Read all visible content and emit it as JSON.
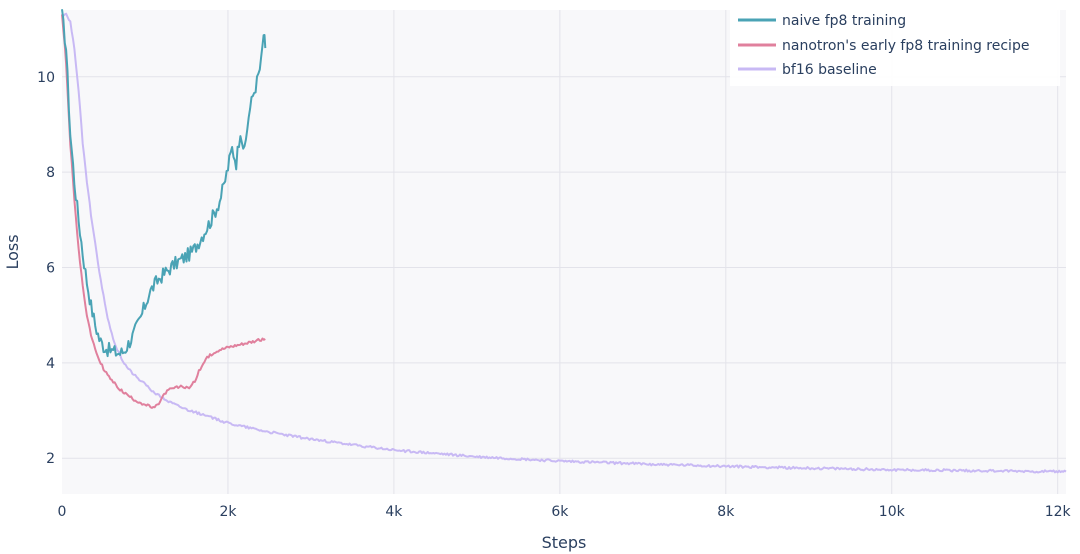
{
  "chart_data": {
    "type": "line",
    "xlabel": "Steps",
    "ylabel": "Loss",
    "xlim": [
      0,
      12100
    ],
    "ylim": [
      1.25,
      11.4
    ],
    "x_ticks": [
      {
        "value": 0,
        "label": "0"
      },
      {
        "value": 2000,
        "label": "2k"
      },
      {
        "value": 4000,
        "label": "4k"
      },
      {
        "value": 6000,
        "label": "6k"
      },
      {
        "value": 8000,
        "label": "8k"
      },
      {
        "value": 10000,
        "label": "10k"
      },
      {
        "value": 12000,
        "label": "12k"
      }
    ],
    "y_ticks": [
      {
        "value": 2,
        "label": "2"
      },
      {
        "value": 4,
        "label": "4"
      },
      {
        "value": 6,
        "label": "6"
      },
      {
        "value": 8,
        "label": "8"
      },
      {
        "value": 10,
        "label": "10"
      }
    ],
    "grid": true,
    "legend_position": "top-right",
    "series": [
      {
        "name": "naive fp8 training",
        "color": "#4aa3b5",
        "x": [
          0,
          50,
          100,
          150,
          200,
          250,
          300,
          350,
          400,
          450,
          500,
          550,
          600,
          650,
          700,
          750,
          800,
          850,
          900,
          950,
          1000,
          1050,
          1100,
          1150,
          1200,
          1250,
          1300,
          1350,
          1400,
          1450,
          1500,
          1550,
          1600,
          1650,
          1700,
          1750,
          1800,
          1850,
          1900,
          1950,
          2000,
          2050,
          2100,
          2150,
          2200,
          2250,
          2300,
          2350,
          2400,
          2430,
          2450
        ],
        "y": [
          11.3,
          10.6,
          8.8,
          7.8,
          7.0,
          6.3,
          5.7,
          5.2,
          4.8,
          4.5,
          4.35,
          4.28,
          4.25,
          4.22,
          4.2,
          4.25,
          4.4,
          4.55,
          4.75,
          4.95,
          5.2,
          5.45,
          5.6,
          5.72,
          5.82,
          5.9,
          5.98,
          6.06,
          6.12,
          6.18,
          6.24,
          6.3,
          6.4,
          6.55,
          6.7,
          6.85,
          7.0,
          7.2,
          7.4,
          7.7,
          8.1,
          8.5,
          8.2,
          8.9,
          8.4,
          9.2,
          9.6,
          9.9,
          10.3,
          10.9,
          10.6
        ],
        "noise": 0.15
      },
      {
        "name": "nanotron's early fp8 training recipe",
        "color": "#e0809d",
        "x": [
          0,
          50,
          100,
          150,
          200,
          250,
          300,
          350,
          400,
          450,
          500,
          550,
          600,
          650,
          700,
          750,
          800,
          850,
          900,
          950,
          1000,
          1050,
          1100,
          1150,
          1200,
          1250,
          1300,
          1350,
          1400,
          1450,
          1500,
          1550,
          1600,
          1650,
          1700,
          1750,
          1800,
          1850,
          1900,
          1950,
          2000,
          2050,
          2100,
          2150,
          2200,
          2250,
          2300,
          2350,
          2400,
          2450
        ],
        "y": [
          11.3,
          10.3,
          8.6,
          7.4,
          6.4,
          5.6,
          5.0,
          4.6,
          4.28,
          4.05,
          3.88,
          3.74,
          3.63,
          3.53,
          3.44,
          3.37,
          3.31,
          3.25,
          3.2,
          3.16,
          3.12,
          3.09,
          3.05,
          3.1,
          3.25,
          3.38,
          3.44,
          3.47,
          3.49,
          3.5,
          3.48,
          3.5,
          3.62,
          3.82,
          3.98,
          4.1,
          4.18,
          4.24,
          4.28,
          4.3,
          4.33,
          4.35,
          4.37,
          4.39,
          4.41,
          4.43,
          4.45,
          4.47,
          4.48,
          4.5
        ],
        "noise": 0.03
      },
      {
        "name": "bf16 baseline",
        "color": "#c8b9f4",
        "x": [
          0,
          50,
          100,
          150,
          200,
          250,
          300,
          350,
          400,
          450,
          500,
          550,
          600,
          650,
          700,
          750,
          800,
          900,
          1000,
          1100,
          1200,
          1300,
          1400,
          1500,
          1750,
          2000,
          2500,
          3000,
          3500,
          4000,
          5000,
          6000,
          7000,
          8000,
          9000,
          10000,
          11000,
          12000,
          12100
        ],
        "y": [
          11.3,
          11.3,
          11.15,
          10.6,
          9.7,
          8.6,
          7.8,
          7.1,
          6.5,
          5.9,
          5.4,
          4.95,
          4.6,
          4.35,
          4.15,
          4.0,
          3.88,
          3.7,
          3.55,
          3.4,
          3.28,
          3.18,
          3.1,
          3.03,
          2.88,
          2.74,
          2.55,
          2.4,
          2.28,
          2.17,
          2.03,
          1.94,
          1.88,
          1.83,
          1.79,
          1.76,
          1.74,
          1.72,
          1.72
        ],
        "noise": 0.025
      }
    ]
  }
}
